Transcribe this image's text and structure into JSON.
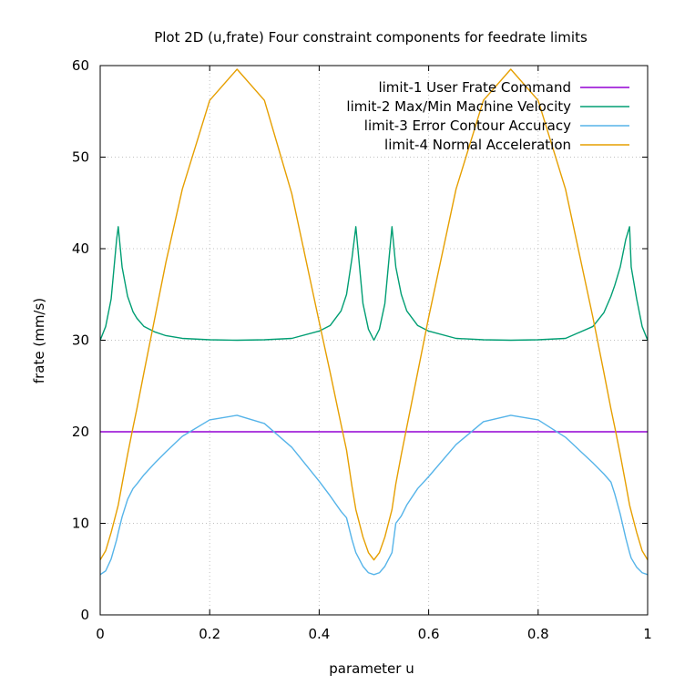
{
  "chart_data": {
    "type": "line",
    "title": "Plot 2D (u,frate) Four constraint components for feedrate limits",
    "xlabel": "parameter u",
    "ylabel": "frate (mm/s)",
    "xlim": [
      0,
      1
    ],
    "ylim": [
      0,
      60
    ],
    "x_ticks": [
      "0",
      "0.2",
      "0.4",
      "0.6",
      "0.8",
      "1"
    ],
    "y_ticks": [
      "0",
      "10",
      "20",
      "30",
      "40",
      "50",
      "60"
    ],
    "grid": true,
    "legend_position": "top-right",
    "x": [
      0,
      0.01,
      0.02,
      0.03,
      0.033,
      0.04,
      0.05,
      0.06,
      0.067,
      0.08,
      0.1,
      0.12,
      0.15,
      0.2,
      0.25,
      0.3,
      0.35,
      0.4,
      0.42,
      0.44,
      0.45,
      0.46,
      0.467,
      0.48,
      0.49,
      0.5,
      0.51,
      0.52,
      0.533,
      0.54,
      0.55,
      0.56,
      0.58,
      0.6,
      0.65,
      0.7,
      0.75,
      0.8,
      0.85,
      0.9,
      0.92,
      0.933,
      0.94,
      0.95,
      0.96,
      0.967,
      0.97,
      0.98,
      0.99,
      1.0
    ],
    "series": [
      {
        "name": "limit-1 User Frate Command",
        "color": "#9400d3",
        "values": [
          20,
          20,
          20,
          20,
          20,
          20,
          20,
          20,
          20,
          20,
          20,
          20,
          20,
          20,
          20,
          20,
          20,
          20,
          20,
          20,
          20,
          20,
          20,
          20,
          20,
          20,
          20,
          20,
          20,
          20,
          20,
          20,
          20,
          20,
          20,
          20,
          20,
          20,
          20,
          20,
          20,
          20,
          20,
          20,
          20,
          20,
          20,
          20,
          20,
          20
        ]
      },
      {
        "name": "limit-2 Max/Min Machine Velocity",
        "color": "#009e73",
        "values": [
          30,
          31.5,
          34.5,
          41,
          42.4,
          38,
          34.8,
          33.1,
          32.4,
          31.5,
          30.9,
          30.5,
          30.2,
          30.05,
          30,
          30.05,
          30.2,
          31,
          31.6,
          33.2,
          35,
          39,
          42.4,
          34,
          31.2,
          30,
          31.2,
          34,
          42.4,
          38,
          35,
          33.2,
          31.6,
          31,
          30.2,
          30.05,
          30,
          30.05,
          30.2,
          31.5,
          33,
          34.8,
          36,
          38,
          41,
          42.4,
          38,
          34.5,
          31.5,
          30
        ]
      },
      {
        "name": "limit-3 Error Contour Accuracy",
        "color": "#56b4e9",
        "values": [
          4.4,
          4.8,
          6.1,
          8.2,
          9.0,
          10.7,
          12.6,
          13.8,
          14.3,
          15.3,
          16.6,
          17.8,
          19.5,
          21.3,
          21.8,
          20.9,
          18.3,
          14.6,
          13.0,
          11.3,
          10.6,
          8.2,
          6.8,
          5.3,
          4.6,
          4.4,
          4.6,
          5.3,
          6.8,
          10.0,
          10.8,
          12.0,
          13.8,
          15.1,
          18.6,
          21.1,
          21.8,
          21.3,
          19.4,
          16.6,
          15.4,
          14.5,
          13.2,
          11.0,
          8.4,
          6.8,
          6.2,
          5.2,
          4.6,
          4.4
        ]
      },
      {
        "name": "limit-4 Normal Acceleration",
        "color": "#e69f00",
        "values": [
          6.0,
          7.0,
          9.0,
          11.3,
          12.0,
          14.3,
          17.5,
          20.5,
          22.5,
          26.5,
          32.5,
          38.5,
          46.5,
          56.2,
          59.6,
          56.2,
          46.0,
          32.0,
          26.5,
          20.8,
          18.0,
          14.0,
          11.5,
          8.5,
          6.8,
          6.0,
          6.8,
          8.5,
          11.5,
          14.3,
          17.5,
          20.5,
          26.5,
          32.5,
          46.5,
          56.2,
          59.6,
          56.2,
          46.5,
          32.5,
          26.5,
          22.5,
          20.5,
          17.5,
          14.3,
          12.0,
          11.3,
          9.0,
          7.0,
          6.0
        ]
      }
    ]
  }
}
